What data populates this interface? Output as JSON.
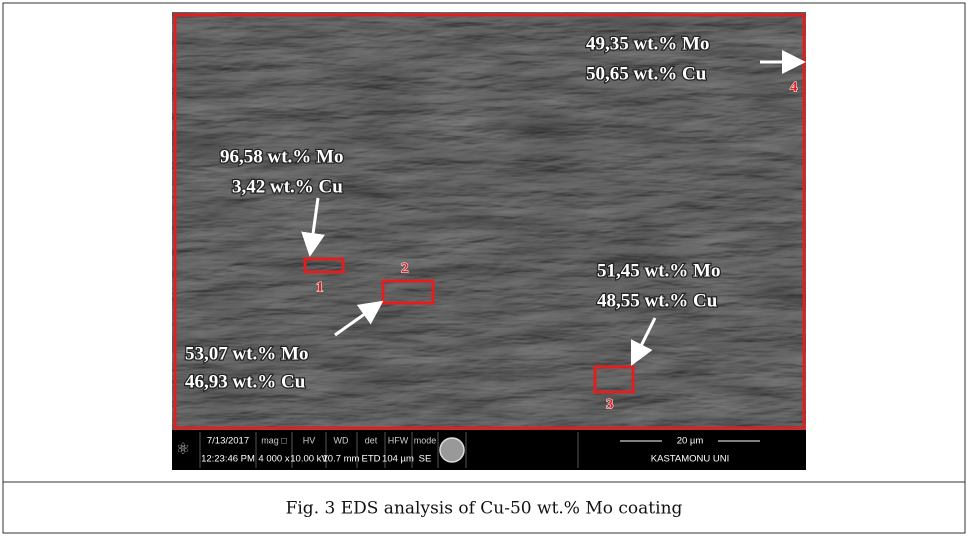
{
  "figure": {
    "image": {
      "annotations": [
        {
          "lines": [
            "49,35 wt.% Mo",
            "50,65 wt.% Cu"
          ],
          "region": "4"
        },
        {
          "lines": [
            "96,58 wt.% Mo",
            "3,42 wt.% Cu"
          ],
          "region": "1"
        },
        {
          "lines": [
            "53,07 wt.% Mo",
            "46,93 wt.% Cu"
          ],
          "region": "2"
        },
        {
          "lines": [
            "51,45 wt.% Mo",
            "48,55 wt.% Cu"
          ],
          "region": "3"
        }
      ],
      "info_bar": {
        "date": "7/13/2017",
        "time": "12:23:46 PM",
        "fields": [
          {
            "label": "mag □",
            "value": "4 000 x"
          },
          {
            "label": "HV",
            "value": "10.00 kV"
          },
          {
            "label": "WD",
            "value": "10.7 mm"
          },
          {
            "label": "det",
            "value": "ETD"
          },
          {
            "label": "HFW",
            "value": "104 µm"
          },
          {
            "label": "mode",
            "value": "SE"
          }
        ],
        "scale": "20 µm",
        "institution": "KASTAMONU UNI"
      }
    },
    "caption": "Fig. 3 EDS analysis of Cu-50 wt.% Mo coating"
  }
}
